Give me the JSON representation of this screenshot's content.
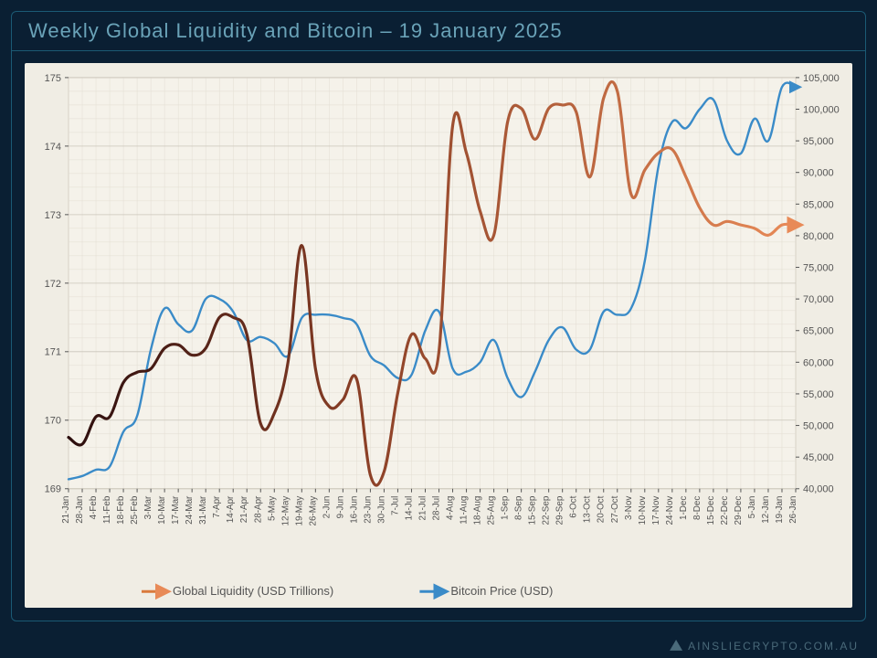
{
  "title": "Weekly Global Liquidity and Bitcoin – 19 January 2025",
  "footer": "AINSLIECRYPTO.COM.AU",
  "chart": {
    "type": "line",
    "background": "#f0ede4",
    "plot_bg": "#f5f2ea",
    "grid_major": "#cbc6bb",
    "grid_minor": "#e2ddd2",
    "axis_color": "#555555",
    "tick_font_size": 11,
    "x_labels": [
      "21-Jan",
      "28-Jan",
      "4-Feb",
      "11-Feb",
      "18-Feb",
      "25-Feb",
      "3-Mar",
      "10-Mar",
      "17-Mar",
      "24-Mar",
      "31-Mar",
      "7-Apr",
      "14-Apr",
      "21-Apr",
      "28-Apr",
      "5-May",
      "12-May",
      "19-May",
      "26-May",
      "2-Jun",
      "9-Jun",
      "16-Jun",
      "23-Jun",
      "30-Jun",
      "7-Jul",
      "14-Jul",
      "21-Jul",
      "28-Jul",
      "4-Aug",
      "11-Aug",
      "18-Aug",
      "25-Aug",
      "1-Sep",
      "8-Sep",
      "15-Sep",
      "22-Sep",
      "29-Sep",
      "6-Oct",
      "13-Oct",
      "20-Oct",
      "27-Oct",
      "3-Nov",
      "10-Nov",
      "17-Nov",
      "24-Nov",
      "1-Dec",
      "8-Dec",
      "15-Dec",
      "22-Dec",
      "29-Dec",
      "5-Jan",
      "12-Jan",
      "19-Jan",
      "26-Jan"
    ],
    "left_axis": {
      "min": 169,
      "max": 175,
      "step": 1,
      "label": ""
    },
    "right_axis": {
      "min": 40000,
      "max": 105000,
      "step": 5000,
      "label": ""
    },
    "legend": [
      {
        "label": "Global Liquidity (USD Trillions)",
        "color": "#d97a3c"
      },
      {
        "label": "Bitcoin Price (USD)",
        "color": "#3a8bc8"
      }
    ],
    "series_liquidity": {
      "color_start": "#2b0d0d",
      "color_end": "#e88a57",
      "width": 3.2,
      "data": [
        169.75,
        169.65,
        170.05,
        170.05,
        170.55,
        170.7,
        170.75,
        171.05,
        171.1,
        170.95,
        171.05,
        171.5,
        171.5,
        171.25,
        169.95,
        170.1,
        170.85,
        172.55,
        170.75,
        170.2,
        170.3,
        170.6,
        169.2,
        169.25,
        170.4,
        171.25,
        170.9,
        171.0,
        174.3,
        173.9,
        173.05,
        172.7,
        174.35,
        174.55,
        174.1,
        174.55,
        174.6,
        174.5,
        173.55,
        174.7,
        174.8,
        173.3,
        173.65,
        173.9,
        173.95,
        173.55,
        173.1,
        172.85,
        172.9,
        172.85,
        172.8,
        172.7,
        172.85,
        172.85
      ]
    },
    "series_bitcoin": {
      "color": "#3a8bc8",
      "width": 2.4,
      "data": [
        41500,
        42000,
        43000,
        43500,
        49000,
        51500,
        62000,
        68500,
        66000,
        65000,
        70000,
        70000,
        68000,
        63500,
        64000,
        63000,
        61000,
        67000,
        67500,
        67500,
        67000,
        66000,
        61000,
        59500,
        57500,
        58000,
        65000,
        68000,
        59000,
        58500,
        60000,
        63500,
        57500,
        54500,
        58500,
        63500,
        65500,
        62000,
        62000,
        68000,
        67500,
        68500,
        76000,
        91000,
        98000,
        97000,
        100000,
        101500,
        95000,
        93000,
        98500,
        95000,
        103500,
        103500
      ]
    }
  }
}
